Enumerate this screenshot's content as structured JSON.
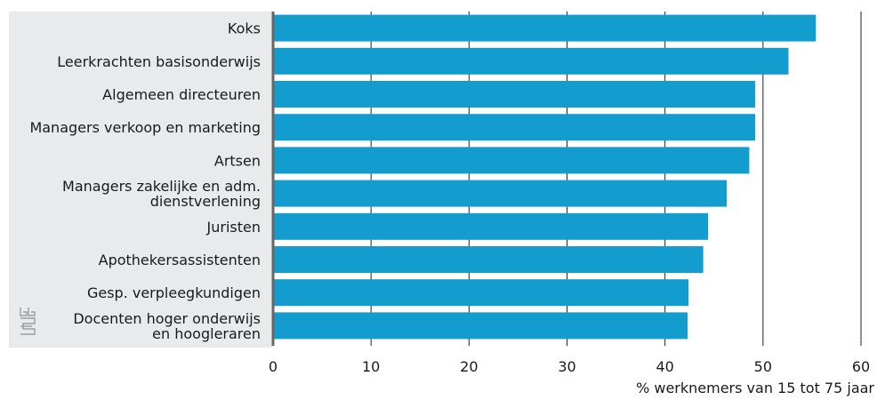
{
  "chart_data": {
    "type": "bar",
    "orientation": "horizontal",
    "categories": [
      "Koks",
      "Leerkrachten basisonderwijs",
      "Algemeen directeuren",
      "Managers verkoop en marketing",
      "Artsen",
      "Managers zakelijke en adm. dienstverlening",
      "Juristen",
      "Apothekersassistenten",
      "Gesp. verpleegkundigen",
      "Docenten hoger onderwijs en hoogleraren"
    ],
    "category_lines": [
      [
        "Koks"
      ],
      [
        "Leerkrachten basisonderwijs"
      ],
      [
        "Algemeen directeuren"
      ],
      [
        "Managers verkoop en marketing"
      ],
      [
        "Artsen"
      ],
      [
        "Managers zakelijke en adm.",
        "dienstverlening"
      ],
      [
        "Juristen"
      ],
      [
        "Apothekersassistenten"
      ],
      [
        "Gesp. verpleegkundigen"
      ],
      [
        "Docenten hoger onderwijs",
        "en hoogleraren"
      ]
    ],
    "values": [
      55.4,
      52.6,
      49.2,
      49.2,
      48.6,
      46.3,
      44.4,
      43.9,
      42.4,
      42.3
    ],
    "xlim": [
      0,
      60
    ],
    "xticks": [
      0,
      10,
      20,
      30,
      40,
      50,
      60
    ],
    "xlabel": "% werknemers van 15 tot 75 jaar",
    "title": "",
    "ylabel": "",
    "grid": "vertical",
    "bar_color": "#139dcf",
    "label_panel_color": "#e8eaeb",
    "axis_color": "#666666",
    "grid_color": "#222222",
    "logo": "cbs-logo"
  }
}
